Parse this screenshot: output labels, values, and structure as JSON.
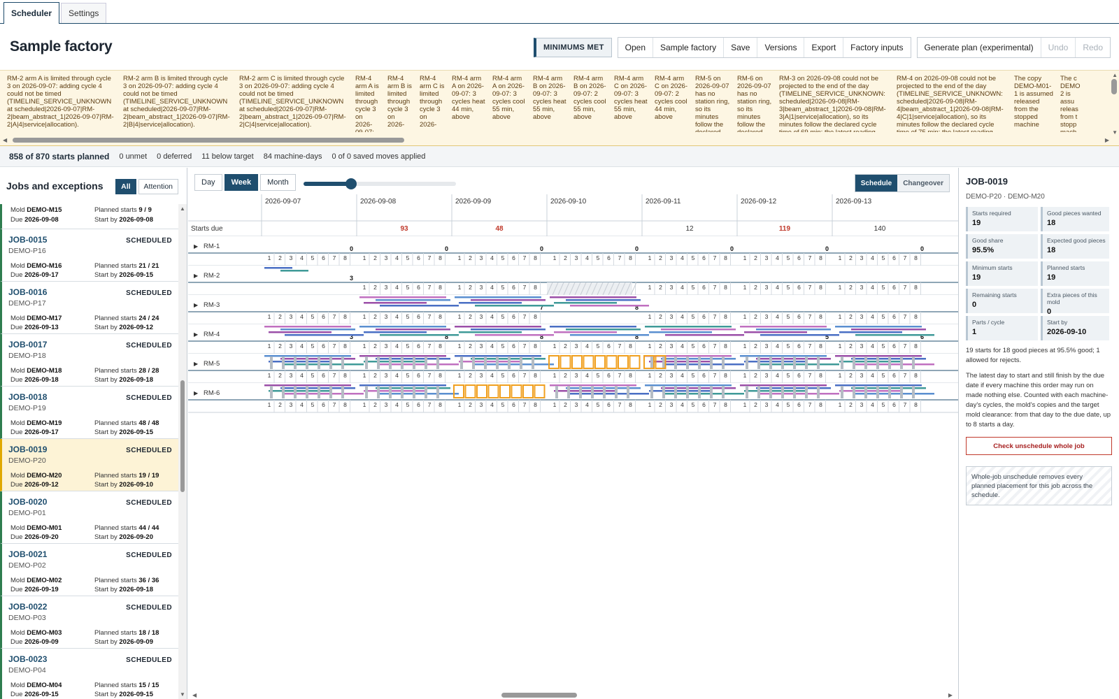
{
  "tabs": [
    {
      "label": "Scheduler"
    },
    {
      "label": "Settings"
    }
  ],
  "title": "Sample factory",
  "toolbar": {
    "status_badge": "MINIMUMS MET",
    "buttons": [
      "Open",
      "Sample factory",
      "Save",
      "Versions",
      "Export",
      "Factory inputs"
    ],
    "generate": "Generate plan (experimental)",
    "undo": "Undo",
    "redo": "Redo"
  },
  "notes": [
    "RM-2 arm A is limited through cycle 3 on 2026-09-07: adding cycle 4 could not be timed (TIMELINE_SERVICE_UNKNOWN at scheduled|2026-09-07|RM-2|beam_abstract_1|2026-09-07|RM-2|A|4|service|allocation).",
    "RM-2 arm B is limited through cycle 3 on 2026-09-07: adding cycle 4 could not be timed (TIMELINE_SERVICE_UNKNOWN at scheduled|2026-09-07|RM-2|beam_abstract_1|2026-09-07|RM-2|B|4|service|allocation).",
    "RM-2 arm C is limited through cycle 3 on 2026-09-07: adding cycle 4 could not be timed (TIMELINE_SERVICE_UNKNOWN at scheduled|2026-09-07|RM-2|beam_abstract_1|2026-09-07|RM-2|C|4|service|allocation).",
    "RM-4 arm A is limited through cycle 3 on 2026-09-07:",
    "RM-4 arm B is limited through cycle 3 on 2026-",
    "RM-4 arm C is limited through cycle 3 on 2026-",
    "RM-4 arm A on 2026-09-07: 3 cycles heat 44 min, above",
    "RM-4 arm A on 2026-09-07: 3 cycles cool 55 min, above",
    "RM-4 arm B on 2026-09-07: 3 cycles heat 55 min, above",
    "RM-4 arm B on 2026-09-07: 2 cycles cool 55 min, above",
    "RM-4 arm C on 2026-09-07: 3 cycles heat 55 min, above",
    "RM-4 arm C on 2026-09-07: 2 cycles cool 44 min, above",
    "RM-5 on 2026-09-07 has no station ring, so its minutes follow the declared",
    "RM-6 on 2026-09-07 has no station ring, so its minutes follow the declared",
    "RM-3 on 2026-09-08 could not be projected to the end of the day (TIMELINE_SERVICE_UNKNOWN: scheduled|2026-09-08|RM-3|beam_abstract_1|2026-09-08|RM-3|A|1|service|allocation), so its minutes follow the declared cycle time of 69 min; the latest reading",
    "RM-4 on 2026-09-08 could not be projected to the end of the day (TIMELINE_SERVICE_UNKNOWN: scheduled|2026-09-08|RM-4|beam_abstract_1|2026-09-08|RM-4|C|1|service|allocation), so its minutes follow the declared cycle time of 75 min; the latest reading",
    "The copy DEMO-M01-1 is assumed released from the stopped machine",
    "The c DEMO 2 is assu releas from t stopp mach"
  ],
  "summary": {
    "planned": "858 of 870 starts planned",
    "unmet": "0 unmet",
    "deferred": "0 deferred",
    "below": "11 below target",
    "machine_days": "84 machine-days",
    "moves": "0 of 0 saved moves applied"
  },
  "left": {
    "title": "Jobs and exceptions",
    "filter_all": "All",
    "filter_attention": "Attention",
    "first": {
      "mold": "DEMO-M15",
      "planned": "9 / 9",
      "due": "2026-09-08",
      "start_by": "2026-09-08"
    },
    "labels": {
      "mold": "Mold",
      "due": "Due",
      "planned": "Planned starts",
      "start_by": "Start by"
    },
    "jobs": [
      {
        "id": "JOB-0015",
        "status": "SCHEDULED",
        "product": "DEMO-P16",
        "mold": "DEMO-M16",
        "planned": "21 / 21",
        "due": "2026-09-17",
        "start_by": "2026-09-15"
      },
      {
        "id": "JOB-0016",
        "status": "SCHEDULED",
        "product": "DEMO-P17",
        "mold": "DEMO-M17",
        "planned": "24 / 24",
        "due": "2026-09-13",
        "start_by": "2026-09-12"
      },
      {
        "id": "JOB-0017",
        "status": "SCHEDULED",
        "product": "DEMO-P18",
        "mold": "DEMO-M18",
        "planned": "28 / 28",
        "due": "2026-09-18",
        "start_by": "2026-09-18"
      },
      {
        "id": "JOB-0018",
        "status": "SCHEDULED",
        "product": "DEMO-P19",
        "mold": "DEMO-M19",
        "planned": "48 / 48",
        "due": "2026-09-17",
        "start_by": "2026-09-15"
      },
      {
        "id": "JOB-0019",
        "status": "SCHEDULED",
        "product": "DEMO-P20",
        "mold": "DEMO-M20",
        "planned": "19 / 19",
        "due": "2026-09-12",
        "start_by": "2026-09-10"
      },
      {
        "id": "JOB-0020",
        "status": "SCHEDULED",
        "product": "DEMO-P01",
        "mold": "DEMO-M01",
        "planned": "44 / 44",
        "due": "2026-09-20",
        "start_by": "2026-09-20"
      },
      {
        "id": "JOB-0021",
        "status": "SCHEDULED",
        "product": "DEMO-P02",
        "mold": "DEMO-M02",
        "planned": "36 / 36",
        "due": "2026-09-19",
        "start_by": "2026-09-18"
      },
      {
        "id": "JOB-0022",
        "status": "SCHEDULED",
        "product": "DEMO-P03",
        "mold": "DEMO-M03",
        "planned": "18 / 18",
        "due": "2026-09-09",
        "start_by": "2026-09-09"
      },
      {
        "id": "JOB-0023",
        "status": "SCHEDULED",
        "product": "DEMO-P04",
        "mold": "DEMO-M04",
        "planned": "15 / 15",
        "due": "2026-09-15",
        "start_by": "2026-09-15"
      }
    ]
  },
  "center": {
    "views": [
      "Day",
      "Week",
      "Month"
    ],
    "zoom_fraction": 0.31,
    "modes": [
      "Schedule",
      "Changeover"
    ],
    "dates": [
      "2026-09-07",
      "2026-09-08",
      "2026-09-09",
      "2026-09-10",
      "2026-09-11",
      "2026-09-12",
      "2026-09-13"
    ],
    "starts_due_label": "Starts due",
    "starts_due": [
      "",
      "93",
      "48",
      "",
      "12",
      "119",
      "140"
    ],
    "starts_due_red": [
      false,
      true,
      true,
      false,
      false,
      true,
      false
    ],
    "machines": [
      {
        "name": "RM-1",
        "counts": [
          "0",
          "0",
          "0",
          "0",
          "0",
          "0",
          "0"
        ]
      },
      {
        "name": "RM-2",
        "counts": [
          "3",
          "",
          "",
          "",
          "",
          "",
          ""
        ]
      },
      {
        "name": "RM-3",
        "counts": [
          "",
          "",
          "7",
          "8",
          "",
          "",
          ""
        ]
      },
      {
        "name": "RM-4",
        "counts": [
          "3",
          "8",
          "8",
          "8",
          "",
          "5",
          "6"
        ]
      },
      {
        "name": "RM-5",
        "counts": [
          "",
          "",
          "",
          "",
          "",
          "",
          ""
        ]
      },
      {
        "name": "RM-6",
        "counts": [
          "",
          "",
          "",
          "",
          "",
          "",
          ""
        ]
      }
    ]
  },
  "right": {
    "title": "JOB-0019",
    "subtitle": "DEMO-P20 · DEMO-M20",
    "stats": [
      {
        "label": "Starts required",
        "value": "19"
      },
      {
        "label": "Good pieces wanted",
        "value": "18"
      },
      {
        "label": "Good share",
        "value": "95.5%"
      },
      {
        "label": "Expected good pieces",
        "value": "18"
      },
      {
        "label": "Minimum starts",
        "value": "19"
      },
      {
        "label": "Planned starts",
        "value": "19"
      },
      {
        "label": "Remaining starts",
        "value": "0"
      },
      {
        "label": "Extra pieces of this mold",
        "value": "0"
      },
      {
        "label": "Parts / cycle",
        "value": "1"
      },
      {
        "label": "Start by",
        "value": "2026-09-10"
      }
    ],
    "desc1": "19 starts for 18 good pieces at 95.5% good; 1 allowed for rejects.",
    "desc2": "The latest day to start and still finish by the due date if every machine this order may run on made nothing else. Counted with each machine-day's cycles, the mold's copies and the target mold clearance: from that day to the due date, up to 8 starts a day.",
    "danger": "Check unschedule whole job",
    "note": "Whole-job unschedule removes every planned placement for this job across the schedule."
  },
  "colors": {
    "accent": "#1f4e6e",
    "scheduled": "#2e7d4f",
    "selected": "#e0a800",
    "bar_purple": "#9b4fa8",
    "bar_blue": "#4a6fc4",
    "bar_teal": "#3f9a98",
    "orange": "#f0a020"
  }
}
